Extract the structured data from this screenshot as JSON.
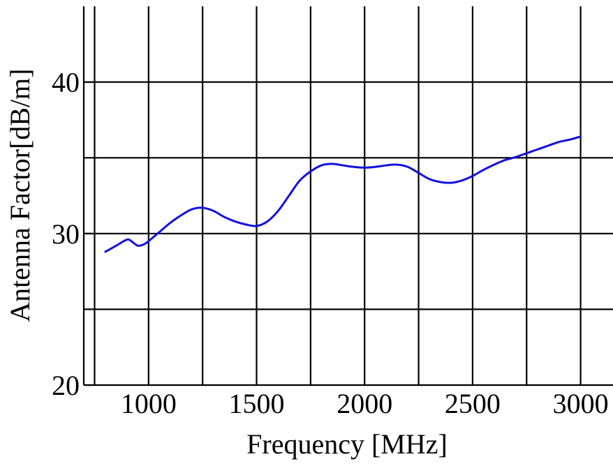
{
  "chart_data": {
    "type": "line",
    "title": "",
    "xlabel": "Frequency [MHz]",
    "ylabel": "Antenna Factor[dB/m]",
    "xlim": [
      700,
      3150
    ],
    "ylim": [
      20,
      45
    ],
    "x_ticks": [
      1000,
      1500,
      2000,
      2500,
      3000
    ],
    "x_tick_labels": [
      "1000",
      "1500",
      "2000",
      "2500",
      "3000"
    ],
    "x_grid": [
      750,
      1000,
      1250,
      1500,
      1750,
      2000,
      2250,
      2500,
      2750,
      3000
    ],
    "y_ticks": [
      20,
      30,
      40
    ],
    "y_tick_labels": [
      "20",
      "30",
      "40"
    ],
    "y_grid": [
      25,
      30,
      35,
      40
    ],
    "grid": true,
    "legend": "none",
    "series": [
      {
        "color": "#1010e0",
        "x": [
          800,
          850,
          900,
          920,
          950,
          980,
          1000,
          1050,
          1100,
          1150,
          1200,
          1250,
          1300,
          1350,
          1400,
          1450,
          1500,
          1550,
          1600,
          1650,
          1700,
          1750,
          1800,
          1850,
          1900,
          1950,
          2000,
          2050,
          2100,
          2150,
          2200,
          2250,
          2300,
          2350,
          2400,
          2450,
          2500,
          2550,
          2600,
          2650,
          2700,
          2750,
          2800,
          2850,
          2900,
          2950,
          3000
        ],
        "y": [
          28.8,
          29.2,
          29.6,
          29.5,
          29.2,
          29.3,
          29.5,
          30.1,
          30.7,
          31.2,
          31.6,
          31.7,
          31.5,
          31.1,
          30.8,
          30.6,
          30.5,
          30.8,
          31.5,
          32.5,
          33.5,
          34.1,
          34.5,
          34.6,
          34.5,
          34.4,
          34.35,
          34.4,
          34.5,
          34.55,
          34.4,
          34.0,
          33.6,
          33.4,
          33.35,
          33.5,
          33.8,
          34.2,
          34.55,
          34.85,
          35.05,
          35.3,
          35.55,
          35.8,
          36.05,
          36.2,
          36.4
        ]
      }
    ]
  }
}
